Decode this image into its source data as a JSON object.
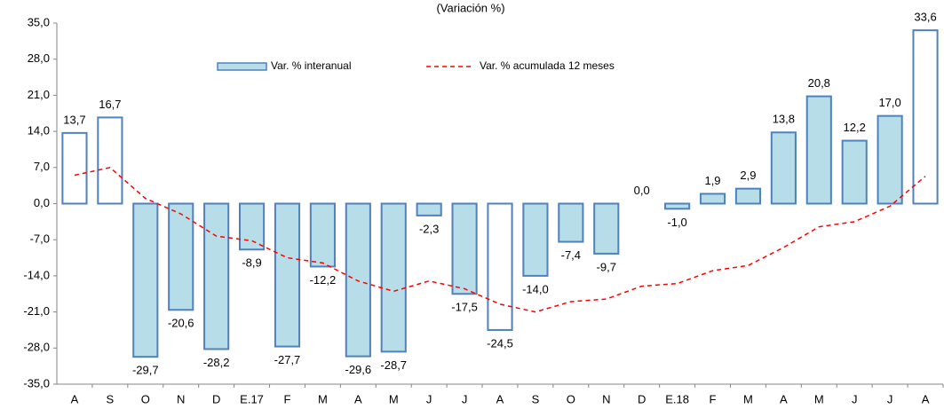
{
  "chart_data": {
    "type": "bar",
    "title": "(Variación %)",
    "categories": [
      "A",
      "S",
      "O",
      "N",
      "D",
      "E.17",
      "F",
      "M",
      "A",
      "M",
      "J",
      "J",
      "A",
      "S",
      "O",
      "N",
      "D",
      "E.18",
      "F",
      "M",
      "A",
      "M",
      "J",
      "J",
      "A"
    ],
    "series": [
      {
        "name": "Var. % interanual",
        "type": "bar",
        "color": "#b7dde8",
        "border": "#4f81bd",
        "colors": [
          "#ffffff",
          "#ffffff",
          "#b7dde8",
          "#b7dde8",
          "#b7dde8",
          "#b7dde8",
          "#b7dde8",
          "#b7dde8",
          "#b7dde8",
          "#b7dde8",
          "#b7dde8",
          "#b7dde8",
          "#ffffff",
          "#b7dde8",
          "#b7dde8",
          "#b7dde8",
          "#b7dde8",
          "#b7dde8",
          "#b7dde8",
          "#b7dde8",
          "#b7dde8",
          "#b7dde8",
          "#b7dde8",
          "#b7dde8",
          "#ffffff"
        ],
        "values": [
          13.7,
          16.7,
          -29.7,
          -20.6,
          -28.2,
          -8.9,
          -27.7,
          -12.2,
          -29.6,
          -28.7,
          -2.3,
          -17.5,
          -24.5,
          -14.0,
          -7.4,
          -9.7,
          0.0,
          -1.0,
          1.9,
          2.9,
          13.8,
          20.8,
          12.2,
          17.0,
          33.6
        ],
        "value_labels": [
          "13,7",
          "16,7",
          "-29,7",
          "-20,6",
          "-28,2",
          "-8,9",
          "-27,7",
          "-12,2",
          "-29,6",
          "-28,7",
          "-2,3",
          "-17,5",
          "-24,5",
          "-14,0",
          "-7,4",
          "-9,7",
          "0,0",
          "-1,0",
          "1,9",
          "2,9",
          "13,8",
          "20,8",
          "12,2",
          "17,0",
          "33,6"
        ]
      },
      {
        "name": "Var. % acumulada 12 meses",
        "type": "line",
        "color": "#ff0000",
        "values": [
          5.5,
          7.0,
          1.0,
          -2.0,
          -6.3,
          -7.2,
          -10.5,
          -11.5,
          -15.0,
          -17.0,
          -15.0,
          -16.5,
          -19.5,
          -21.0,
          -19.0,
          -18.5,
          -16.0,
          -15.5,
          -13.0,
          -12.0,
          -8.5,
          -4.5,
          -3.5,
          -0.5,
          5.3
        ]
      }
    ],
    "ylim": [
      -35,
      35
    ],
    "yticks": [
      {
        "value": -35,
        "label": "-35,0"
      },
      {
        "value": -28,
        "label": "-28,0"
      },
      {
        "value": -21,
        "label": "-21,0"
      },
      {
        "value": -14,
        "label": "-14,0"
      },
      {
        "value": -7,
        "label": "-7,0"
      },
      {
        "value": 0,
        "label": "0,0"
      },
      {
        "value": 7,
        "label": "7,0"
      },
      {
        "value": 14,
        "label": "14,0"
      },
      {
        "value": 21,
        "label": "21,0"
      },
      {
        "value": 28,
        "label": "28,0"
      },
      {
        "value": 35,
        "label": "35,0"
      }
    ],
    "grid": false
  }
}
